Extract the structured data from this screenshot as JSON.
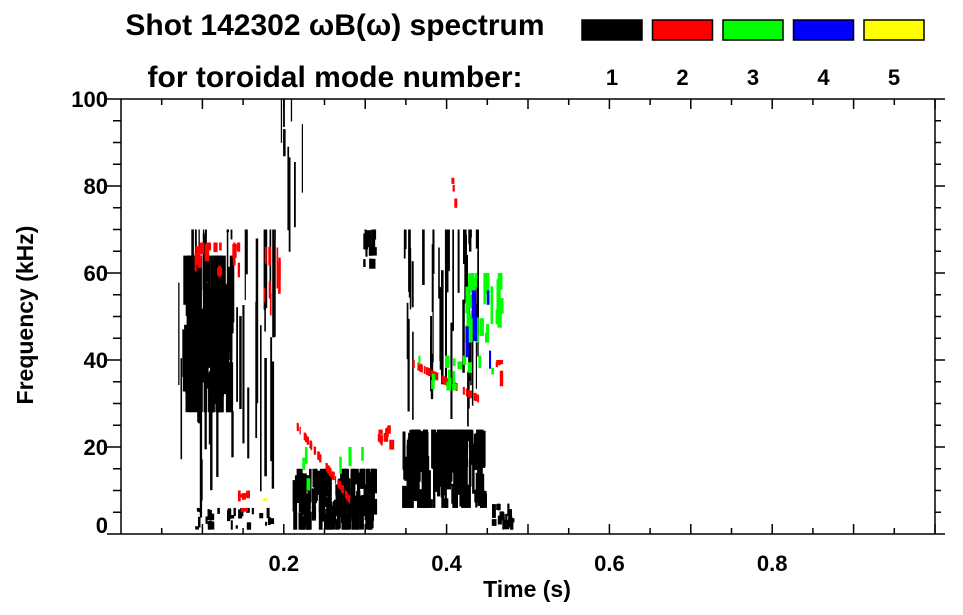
{
  "chart_data": {
    "type": "heatmap",
    "title": "Shot 142302 ωB(ω) spectrum",
    "subtitle": "for toroidal mode number:",
    "xlabel": "Time (s)",
    "ylabel": "Frequency (kHz)",
    "xlim": [
      0.0,
      1.0
    ],
    "ylim": [
      0,
      100
    ],
    "xticks": [
      0.2,
      0.4,
      0.6,
      0.8
    ],
    "xtick_labels": [
      "0.2",
      "0.4",
      "0.6",
      "0.8"
    ],
    "yticks": [
      0,
      20,
      40,
      60,
      80,
      100
    ],
    "ytick_labels": [
      "0",
      "20",
      "40",
      "60",
      "80",
      "100"
    ],
    "legend_placement": "top-right",
    "legend": [
      {
        "mode": "1",
        "color": "#000000"
      },
      {
        "mode": "2",
        "color": "#ff0000"
      },
      {
        "mode": "3",
        "color": "#00ff00"
      },
      {
        "mode": "4",
        "color": "#0000ff"
      },
      {
        "mode": "5",
        "color": "#ffff00"
      }
    ],
    "regions": [
      {
        "mode": 1,
        "t": [
          0.075,
          0.135
        ],
        "f": [
          28,
          64
        ],
        "density": 140,
        "style": "blob"
      },
      {
        "mode": 1,
        "t": [
          0.07,
          0.19
        ],
        "f": [
          2,
          70
        ],
        "density": 45,
        "style": "streak"
      },
      {
        "mode": 1,
        "t": [
          0.09,
          0.185
        ],
        "f": [
          1,
          6
        ],
        "density": 30,
        "style": "blob"
      },
      {
        "mode": 1,
        "t": [
          0.21,
          0.31
        ],
        "f": [
          1,
          15
        ],
        "density": 170,
        "style": "blob"
      },
      {
        "mode": 1,
        "t": [
          0.195,
          0.225
        ],
        "f": [
          60,
          100
        ],
        "density": 8,
        "style": "streak"
      },
      {
        "mode": 1,
        "t": [
          0.295,
          0.31
        ],
        "f": [
          61,
          70
        ],
        "density": 12,
        "style": "blob"
      },
      {
        "mode": 1,
        "t": [
          0.345,
          0.445
        ],
        "f": [
          6,
          24
        ],
        "density": 200,
        "style": "blob"
      },
      {
        "mode": 1,
        "t": [
          0.345,
          0.44
        ],
        "f": [
          22,
          70
        ],
        "density": 50,
        "style": "streak"
      },
      {
        "mode": 1,
        "t": [
          0.455,
          0.48
        ],
        "f": [
          1,
          7
        ],
        "density": 20,
        "style": "blob"
      },
      {
        "mode": 2,
        "t": [
          0.09,
          0.145
        ],
        "f": [
          59,
          67
        ],
        "density": 18,
        "style": "blob"
      },
      {
        "mode": 2,
        "t": [
          0.215,
          0.28
        ],
        "f": [
          8,
          25
        ],
        "density": 40,
        "style": "line",
        "slope": -1
      },
      {
        "mode": 2,
        "t": [
          0.315,
          0.33
        ],
        "f": [
          19,
          25
        ],
        "density": 10,
        "style": "blob"
      },
      {
        "mode": 2,
        "t": [
          0.35,
          0.44
        ],
        "f": [
          31,
          40
        ],
        "density": 40,
        "style": "line",
        "slope": -1
      },
      {
        "mode": 2,
        "t": [
          0.165,
          0.2
        ],
        "f": [
          50,
          66
        ],
        "density": 8,
        "style": "streak"
      },
      {
        "mode": 2,
        "t": [
          0.14,
          0.155
        ],
        "f": [
          5,
          10
        ],
        "density": 8,
        "style": "blob"
      },
      {
        "mode": 2,
        "t": [
          0.46,
          0.47
        ],
        "f": [
          33,
          40
        ],
        "density": 5,
        "style": "blob"
      },
      {
        "mode": 2,
        "t": [
          0.405,
          0.41
        ],
        "f": [
          75,
          82
        ],
        "density": 3,
        "style": "blob"
      },
      {
        "mode": 3,
        "t": [
          0.42,
          0.47
        ],
        "f": [
          44,
          60
        ],
        "density": 25,
        "style": "blob"
      },
      {
        "mode": 3,
        "t": [
          0.36,
          0.46
        ],
        "f": [
          33,
          41
        ],
        "density": 15,
        "style": "blob"
      },
      {
        "mode": 3,
        "t": [
          0.22,
          0.3
        ],
        "f": [
          10,
          20
        ],
        "density": 6,
        "style": "blob"
      },
      {
        "mode": 4,
        "t": [
          0.42,
          0.465
        ],
        "f": [
          38,
          56
        ],
        "density": 5,
        "style": "blob"
      },
      {
        "mode": 5,
        "t": [
          0.17,
          0.175
        ],
        "f": [
          7,
          9
        ],
        "density": 1,
        "style": "blob"
      }
    ]
  }
}
